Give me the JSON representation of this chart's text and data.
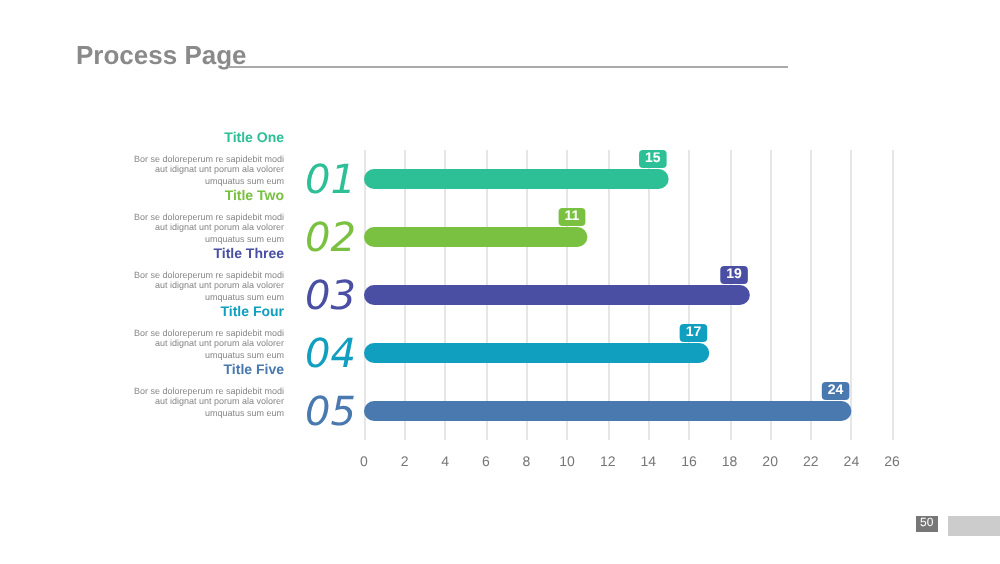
{
  "chart_data": {
    "type": "bar",
    "orientation": "horizontal",
    "title": "Process Page",
    "categories": [
      "01",
      "02",
      "03",
      "04",
      "05"
    ],
    "values": [
      15,
      11,
      19,
      17,
      24
    ],
    "colors": [
      "#2dbf96",
      "#7ac142",
      "#4a4fa3",
      "#119fc0",
      "#4a79b0"
    ],
    "xlim": [
      0,
      26
    ],
    "xticks": [
      0,
      2,
      4,
      6,
      8,
      10,
      12,
      14,
      16,
      18,
      20,
      22,
      24,
      26
    ],
    "grid": "x",
    "data_labels": true,
    "annotations": [
      "Title One",
      "Title Two",
      "Title Three",
      "Title Four",
      "Title Five",
      "Bor se doloreperum re sapidebit modi aut idignat unt porum ala volorer umquatus sum eum",
      "Bor se doloreperum re sapidebit modi aut idignat unt porum ala volorer umquatus sum eum",
      "Bor se doloreperum re sapidebit modi aut idignat unt porum ala volorer umquatus sum eum",
      "Bor se doloreperum re sapidebit modi aut idignat unt porum ala volorer umquatus sum eum",
      "Bor se doloreperum re sapidebit modi aut idignat unt porum ala volorer umquatus sum eum",
      "50"
    ]
  }
}
